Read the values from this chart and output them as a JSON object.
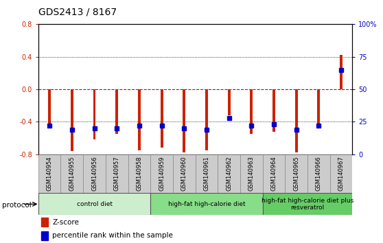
{
  "title": "GDS2413 / 8167",
  "samples": [
    "GSM140954",
    "GSM140955",
    "GSM140956",
    "GSM140957",
    "GSM140958",
    "GSM140959",
    "GSM140960",
    "GSM140961",
    "GSM140962",
    "GSM140963",
    "GSM140964",
    "GSM140965",
    "GSM140966",
    "GSM140967"
  ],
  "z_scores": [
    -0.48,
    -0.76,
    -0.62,
    -0.55,
    -0.75,
    -0.72,
    -0.78,
    -0.75,
    -0.32,
    -0.55,
    -0.52,
    -0.78,
    -0.48,
    0.42
  ],
  "percentile_ranks": [
    22,
    19,
    20,
    20,
    22,
    22,
    20,
    19,
    28,
    22,
    23,
    19,
    22,
    65
  ],
  "bar_color": "#cc2200",
  "dot_color": "#0000cc",
  "ylim_left": [
    -0.8,
    0.8
  ],
  "ylim_right": [
    0,
    100
  ],
  "yticks_left": [
    -0.8,
    -0.4,
    0.0,
    0.4,
    0.8
  ],
  "yticks_right": [
    0,
    25,
    50,
    75,
    100
  ],
  "ytick_labels_right": [
    "0",
    "25",
    "50",
    "75",
    "100%"
  ],
  "hline_color_zero": "#cc0000",
  "groups": [
    {
      "label": "control diet",
      "start": 0,
      "end": 5,
      "color": "#cceecc"
    },
    {
      "label": "high-fat high-calorie diet",
      "start": 5,
      "end": 10,
      "color": "#88dd88"
    },
    {
      "label": "high-fat high-calorie diet plus\nresveratrol",
      "start": 10,
      "end": 14,
      "color": "#66cc66"
    }
  ],
  "protocol_label": "protocol",
  "legend_zscore": "Z-score",
  "legend_percentile": "percentile rank within the sample",
  "bg_color": "#ffffff",
  "bar_width": 0.12,
  "title_fontsize": 10,
  "tick_fontsize": 7,
  "label_fontsize": 8
}
